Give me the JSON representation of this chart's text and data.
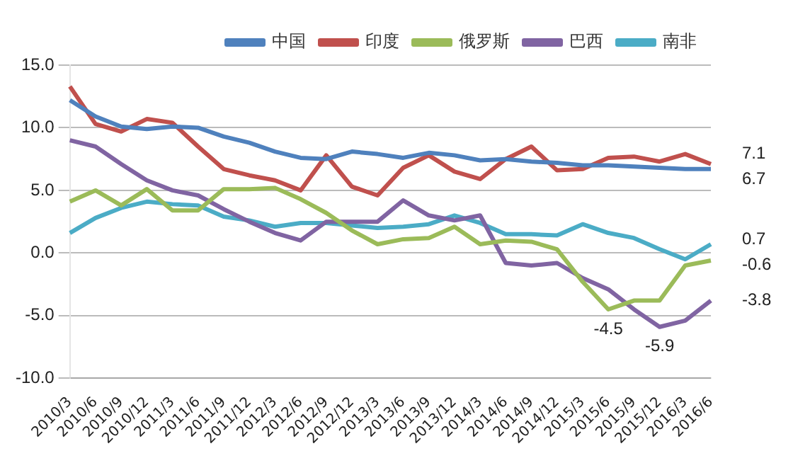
{
  "chart_data": {
    "type": "line",
    "categories": [
      "2010/3",
      "2010/6",
      "2010/9",
      "2010/12",
      "2011/3",
      "2011/6",
      "2011/9",
      "2011/12",
      "2012/3",
      "2012/6",
      "2012/9",
      "2012/12",
      "2013/3",
      "2013/6",
      "2013/9",
      "2013/12",
      "2014/3",
      "2014/6",
      "2014/9",
      "2014/12",
      "2015/3",
      "2015/6",
      "2015/9",
      "2015/12",
      "2016/3",
      "2016/6"
    ],
    "series": [
      {
        "name": "中国",
        "color": "#4f81bd",
        "values": [
          12.2,
          10.9,
          10.1,
          9.9,
          10.1,
          10.0,
          9.3,
          8.8,
          8.1,
          7.6,
          7.5,
          8.1,
          7.9,
          7.6,
          8.0,
          7.8,
          7.4,
          7.5,
          7.3,
          7.2,
          7.0,
          7.0,
          6.9,
          6.8,
          6.7,
          6.7
        ]
      },
      {
        "name": "印度",
        "color": "#c0504d",
        "values": [
          13.3,
          10.3,
          9.7,
          10.7,
          10.4,
          8.5,
          6.7,
          6.2,
          5.8,
          5.0,
          7.8,
          5.3,
          4.6,
          6.8,
          7.8,
          6.5,
          5.9,
          7.5,
          8.5,
          6.6,
          6.7,
          7.6,
          7.7,
          7.3,
          7.9,
          7.1
        ]
      },
      {
        "name": "俄罗斯",
        "color": "#9bbb59",
        "values": [
          4.1,
          5.0,
          3.8,
          5.1,
          3.4,
          3.4,
          5.1,
          5.1,
          5.2,
          4.3,
          3.2,
          1.8,
          0.7,
          1.1,
          1.2,
          2.1,
          0.7,
          1.0,
          0.9,
          0.3,
          -2.3,
          -4.5,
          -3.8,
          -3.8,
          -1.0,
          -0.6
        ]
      },
      {
        "name": "巴西",
        "color": "#8064a2",
        "values": [
          9.0,
          8.5,
          7.1,
          5.8,
          5.0,
          4.6,
          3.5,
          2.5,
          1.6,
          1.0,
          2.5,
          2.5,
          2.5,
          4.2,
          3.0,
          2.6,
          3.0,
          -0.8,
          -1.0,
          -0.8,
          -2.0,
          -2.9,
          -4.5,
          -5.9,
          -5.4,
          -3.8
        ]
      },
      {
        "name": "南非",
        "color": "#4bacc6",
        "values": [
          1.6,
          2.8,
          3.6,
          4.1,
          3.9,
          3.8,
          2.9,
          2.6,
          2.1,
          2.4,
          2.4,
          2.2,
          2.0,
          2.1,
          2.3,
          3.0,
          2.4,
          1.5,
          1.5,
          1.4,
          2.3,
          1.6,
          1.2,
          0.3,
          -0.5,
          0.7
        ]
      }
    ],
    "ylim": [
      -10,
      15
    ],
    "yticks": [
      {
        "value": -10,
        "label": "-10.0"
      },
      {
        "value": -5,
        "label": "-5.0"
      },
      {
        "value": 0,
        "label": "0.0"
      },
      {
        "value": 5,
        "label": "5.0"
      },
      {
        "value": 10,
        "label": "10.0"
      },
      {
        "value": 15,
        "label": "15.0"
      }
    ],
    "grid": "y",
    "legend": "top",
    "marker": "none",
    "line_style": "solid",
    "annotations": [
      {
        "text": "7.1",
        "x": "2016/6",
        "y": 7.1
      },
      {
        "text": "6.7",
        "x": "2016/6",
        "y": 6.7
      },
      {
        "text": "0.7",
        "x": "2016/6",
        "y": 0.7
      },
      {
        "text": "-0.6",
        "x": "2016/6",
        "y": -0.6
      },
      {
        "text": "-3.8",
        "x": "2016/6",
        "y": -3.8
      },
      {
        "text": "-4.5",
        "x": "2015/6",
        "y": -4.5
      },
      {
        "text": "-5.9",
        "x": "2015/12",
        "y": -5.9
      }
    ]
  }
}
